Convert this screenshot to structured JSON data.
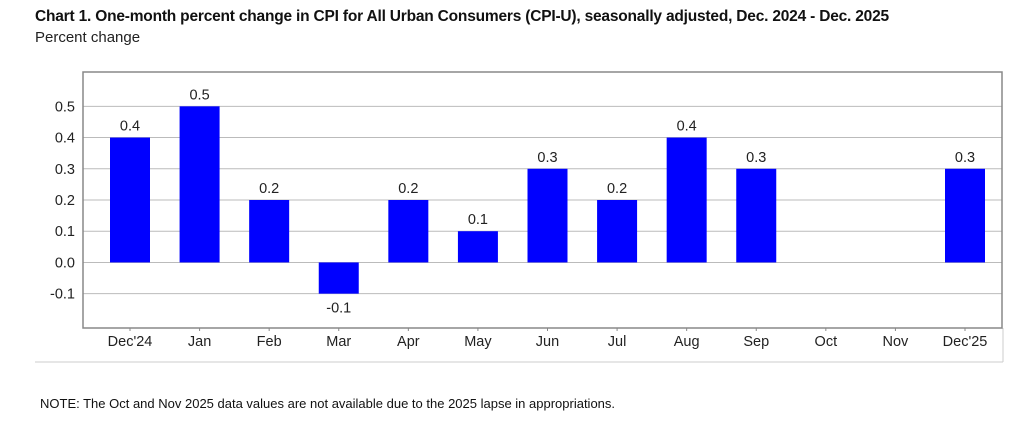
{
  "chart_data": {
    "type": "bar",
    "title": "Chart 1. One-month percent change in CPI for All Urban Consumers (CPI-U), seasonally adjusted, Dec. 2024 - Dec. 2025",
    "ylabel": "Percent change",
    "xlabel": "",
    "categories": [
      "Dec'24",
      "Jan",
      "Feb",
      "Mar",
      "Apr",
      "May",
      "Jun",
      "Jul",
      "Aug",
      "Sep",
      "Oct",
      "Nov",
      "Dec'25"
    ],
    "values": [
      0.4,
      0.5,
      0.2,
      -0.1,
      0.2,
      0.1,
      0.3,
      0.2,
      0.4,
      0.3,
      null,
      null,
      0.3
    ],
    "data_labels": [
      "0.4",
      "0.5",
      "0.2",
      "-0.1",
      "0.2",
      "0.1",
      "0.3",
      "0.2",
      "0.4",
      "0.3",
      "",
      "",
      "0.3"
    ],
    "yticks": [
      "-0.1",
      "0.0",
      "0.1",
      "0.2",
      "0.3",
      "0.4",
      "0.5"
    ],
    "ylim": [
      -0.21,
      0.61
    ],
    "grid": true,
    "bar_color": "#0000ff",
    "legend": "none"
  },
  "note": "NOTE: The Oct and Nov 2025 data values are not available due to the 2025 lapse in appropriations."
}
